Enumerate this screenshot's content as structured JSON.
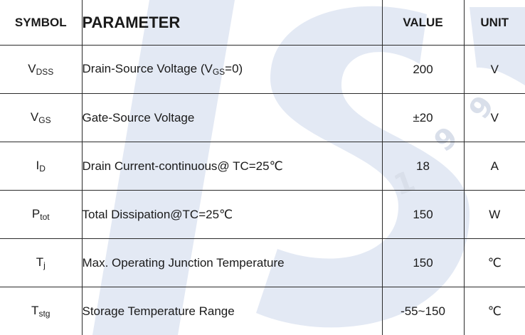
{
  "header": {
    "symbol": "SYMBOL",
    "parameter": "PARAMETER",
    "value": "VALUE",
    "unit": "UNIT"
  },
  "watermark": {
    "logo": "ISC",
    "digits": [
      "1",
      "9",
      "9"
    ],
    "color": "#dfe6f3"
  },
  "rows": [
    {
      "symbol_base": "V",
      "symbol_sub": "DSS",
      "param_pre": "Drain-Source Voltage (V",
      "param_sub": "GS",
      "param_post": "=0)",
      "value": "200",
      "unit": "V"
    },
    {
      "symbol_base": "V",
      "symbol_sub": "GS",
      "parameter": "Gate-Source Voltage",
      "value": "±20",
      "unit": "V"
    },
    {
      "symbol_base": "I",
      "symbol_sub": "D",
      "parameter": "Drain Current-continuous@ TC=25℃",
      "value": "18",
      "unit": "A"
    },
    {
      "symbol_base": "P",
      "symbol_sub": "tot",
      "parameter": "Total Dissipation@TC=25℃",
      "value": "150",
      "unit": "W"
    },
    {
      "symbol_base": "T",
      "symbol_sub": "j",
      "parameter": "Max. Operating Junction Temperature",
      "value": "150",
      "unit": "℃"
    },
    {
      "symbol_base": "T",
      "symbol_sub": "stg",
      "parameter": "Storage Temperature Range",
      "value": "-55~150",
      "unit": "℃"
    }
  ]
}
